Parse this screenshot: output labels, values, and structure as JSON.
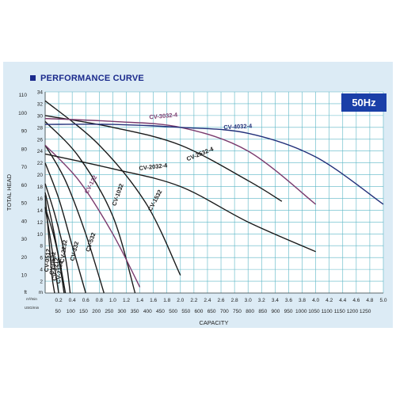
{
  "title": "PERFORMANCE CURVE",
  "frequency": "50Hz",
  "chart_data": {
    "type": "line",
    "ylabel": "TOTAL HEAD",
    "xlabel": "CAPACITY",
    "y_units": [
      "ft",
      "m"
    ],
    "x_units": [
      "m³/min",
      "USG/min"
    ],
    "ft_ticks": [
      "10",
      "20",
      "30",
      "40",
      "50",
      "60",
      "70",
      "80",
      "90",
      "100",
      "110"
    ],
    "m_ticks": [
      "0",
      "2",
      "4",
      "6",
      "8",
      "10",
      "12",
      "14",
      "16",
      "18",
      "20",
      "22",
      "24",
      "26",
      "28",
      "30",
      "32",
      "34"
    ],
    "m3_ticks": [
      "0.2",
      "0.4",
      "0.6",
      "0.8",
      "1.0",
      "1.2",
      "1.4",
      "1.6",
      "1.8",
      "2.0",
      "2.2",
      "2.4",
      "2.6",
      "2.8",
      "3.0",
      "3.2",
      "3.4",
      "3.6",
      "3.8",
      "4.0",
      "4.2",
      "4.4",
      "4.6",
      "4.8",
      "5.0"
    ],
    "usg_ticks": [
      "50",
      "100",
      "150",
      "200",
      "250",
      "300",
      "350",
      "400",
      "450",
      "500",
      "550",
      "600",
      "650",
      "700",
      "750",
      "800",
      "850",
      "900",
      "950",
      "1000",
      "1050",
      "1100",
      "1150",
      "1200",
      "1250"
    ],
    "xlim_m3": [
      0,
      5.0
    ],
    "ylim_m": [
      0,
      34
    ],
    "grid": true,
    "colors": {
      "black": "#1a1a1a",
      "purple": "#7a3b6e",
      "navy": "#22307a"
    },
    "series": [
      {
        "name": "CV-0512",
        "color": "black",
        "points": [
          [
            0,
            16.5
          ],
          [
            0.05,
            10
          ],
          [
            0.1,
            3
          ],
          [
            0.14,
            0
          ]
        ]
      },
      {
        "name": "CV-0532",
        "color": "black",
        "points": [
          [
            0,
            14.5
          ],
          [
            0.08,
            9
          ],
          [
            0.16,
            3
          ],
          [
            0.2,
            0
          ]
        ]
      },
      {
        "name": "CV-1212",
        "color": "black",
        "points": [
          [
            0,
            17
          ],
          [
            0.1,
            12
          ],
          [
            0.2,
            6
          ],
          [
            0.28,
            0
          ]
        ]
      },
      {
        "name": "CV-2132",
        "color": "black",
        "points": [
          [
            0,
            14.5
          ],
          [
            0.12,
            10
          ],
          [
            0.22,
            5
          ],
          [
            0.3,
            0
          ]
        ]
      },
      {
        "name": "CV-2232",
        "color": "black",
        "points": [
          [
            0,
            18.5
          ],
          [
            0.15,
            13
          ],
          [
            0.3,
            6
          ],
          [
            0.37,
            0
          ]
        ]
      },
      {
        "name": "CV-332",
        "color": "black",
        "points": [
          [
            0,
            22
          ],
          [
            0.2,
            16
          ],
          [
            0.4,
            8
          ],
          [
            0.6,
            0
          ]
        ]
      },
      {
        "name": "CV-532",
        "color": "black",
        "points": [
          [
            0,
            25
          ],
          [
            0.3,
            19
          ],
          [
            0.6,
            10
          ],
          [
            0.87,
            0
          ]
        ]
      },
      {
        "name": "CV-1032",
        "color": "black",
        "points": [
          [
            0,
            29
          ],
          [
            0.5,
            23
          ],
          [
            1.0,
            13
          ],
          [
            1.33,
            0
          ]
        ]
      },
      {
        "name": "CV-132",
        "color": "purple",
        "points": [
          [
            0,
            25
          ],
          [
            0.5,
            19
          ],
          [
            1.0,
            10
          ],
          [
            1.4,
            1
          ]
        ]
      },
      {
        "name": "CV-1532",
        "color": "black",
        "points": [
          [
            0,
            32.5
          ],
          [
            0.8,
            25
          ],
          [
            1.5,
            15
          ],
          [
            2.0,
            3
          ]
        ]
      },
      {
        "name": "CV-2032-4",
        "color": "black",
        "points": [
          [
            0,
            23.5
          ],
          [
            1.0,
            21
          ],
          [
            2.0,
            18
          ],
          [
            3.0,
            12
          ],
          [
            4.0,
            7
          ]
        ]
      },
      {
        "name": "CV-2532-4",
        "color": "black",
        "points": [
          [
            0,
            30
          ],
          [
            1.0,
            28
          ],
          [
            2.0,
            25
          ],
          [
            3.0,
            19
          ],
          [
            3.5,
            15.5
          ]
        ]
      },
      {
        "name": "CV-3032-4",
        "color": "purple",
        "points": [
          [
            0,
            29.5
          ],
          [
            1.0,
            29
          ],
          [
            2.0,
            28
          ],
          [
            3.0,
            24
          ],
          [
            4.0,
            15
          ]
        ]
      },
      {
        "name": "CV-4032-4",
        "color": "navy",
        "points": [
          [
            0,
            28.5
          ],
          [
            1.0,
            28.5
          ],
          [
            2.0,
            28
          ],
          [
            3.0,
            27
          ],
          [
            4.0,
            23
          ],
          [
            5.0,
            15
          ]
        ]
      }
    ]
  }
}
